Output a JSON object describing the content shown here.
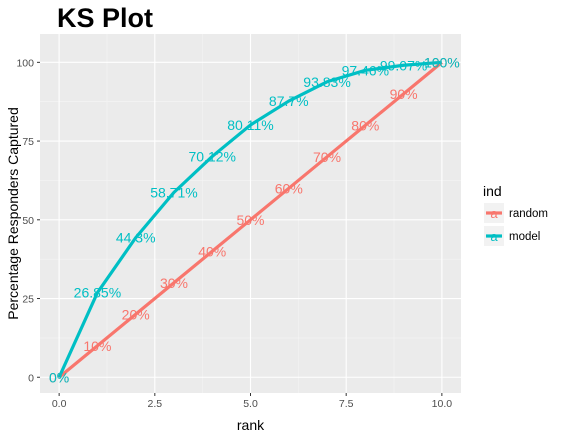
{
  "chart_data": {
    "type": "line",
    "title": "KS Plot",
    "xlabel": "rank",
    "ylabel": "Percentage Responders Captured",
    "xlim": [
      -0.5,
      10.5
    ],
    "ylim": [
      -5,
      109
    ],
    "x_ticks": [
      0,
      2.5,
      5,
      7.5,
      10
    ],
    "x_tick_labels": [
      "0.0",
      "2.5",
      "5.0",
      "7.5",
      "10.0"
    ],
    "y_ticks": [
      0,
      25,
      50,
      75,
      100
    ],
    "y_tick_labels": [
      "0",
      "25",
      "50",
      "75",
      "100"
    ],
    "grid": true,
    "legend": {
      "title": "ind",
      "position": "right",
      "glyph": "a"
    },
    "background": "#ebebeb",
    "series": [
      {
        "name": "random",
        "color": "#f8766d",
        "x": [
          0,
          1,
          2,
          3,
          4,
          5,
          6,
          7,
          8,
          9,
          10
        ],
        "y": [
          0,
          10,
          20,
          30,
          40,
          50,
          60,
          70,
          80,
          90,
          100
        ],
        "labels": [
          "0%",
          "10%",
          "20%",
          "30%",
          "40%",
          "50%",
          "60%",
          "70%",
          "80%",
          "90%",
          "100%"
        ]
      },
      {
        "name": "model",
        "color": "#00bfc4",
        "x": [
          0,
          1,
          2,
          3,
          4,
          5,
          6,
          7,
          8,
          9,
          10
        ],
        "y": [
          0,
          26.85,
          44.3,
          58.71,
          70.12,
          80.11,
          87.7,
          93.83,
          97.46,
          99.07,
          100
        ],
        "labels": [
          "0%",
          "26.85%",
          "44.3%",
          "58.71%",
          "70.12%",
          "80.11%",
          "87.7%",
          "93.83%",
          "97.46%",
          "99.07%",
          "100%"
        ]
      }
    ]
  }
}
